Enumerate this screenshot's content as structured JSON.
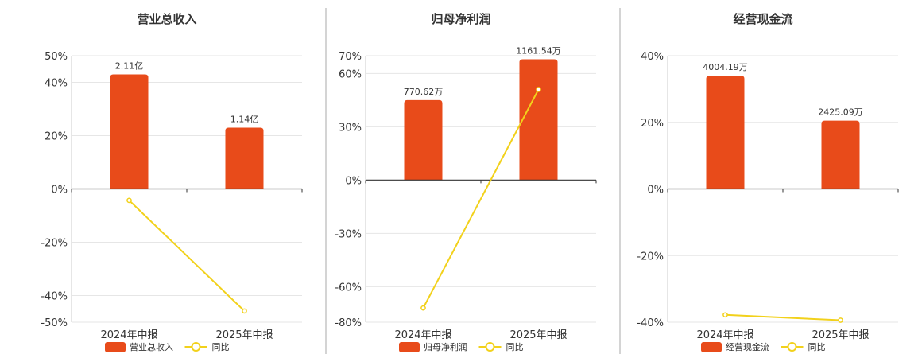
{
  "chart_data": [
    {
      "type": "bar",
      "title": "营业总收入",
      "categories": [
        "2024年中报",
        "2025年中报"
      ],
      "bar_series": {
        "name": "营业总收入",
        "values_pct": [
          43,
          23
        ],
        "labels": [
          "2.11亿",
          "1.14亿"
        ]
      },
      "line_series": {
        "name": "同比",
        "values": [
          -4.3,
          -45.8
        ]
      },
      "ylim": [
        -50,
        50
      ],
      "yticks": [
        50,
        40,
        20,
        0,
        -20,
        -40,
        -50
      ],
      "grid": true,
      "legend": "bottom"
    },
    {
      "type": "bar",
      "title": "归母净利润",
      "categories": [
        "2024年中报",
        "2025年中报"
      ],
      "bar_series": {
        "name": "归母净利润",
        "values_pct": [
          45,
          68
        ],
        "labels": [
          "770.62万",
          "1161.54万"
        ]
      },
      "line_series": {
        "name": "同比",
        "values": [
          -72,
          51
        ]
      },
      "ylim": [
        -80,
        70
      ],
      "yticks": [
        70,
        60,
        30,
        0,
        -30,
        -60,
        -80
      ],
      "grid": true,
      "legend": "bottom"
    },
    {
      "type": "bar",
      "title": "经营现金流",
      "categories": [
        "2024年中报",
        "2025年中报"
      ],
      "bar_series": {
        "name": "经营现金流",
        "values_pct": [
          34,
          20.5
        ],
        "labels": [
          "4004.19万",
          "2425.09万"
        ]
      },
      "line_series": {
        "name": "同比",
        "values": [
          -37.8,
          -39.4
        ]
      },
      "ylim": [
        -40,
        40
      ],
      "yticks": [
        40,
        20,
        0,
        -20,
        -40
      ],
      "grid": true,
      "legend": "bottom"
    }
  ],
  "colors": {
    "bar": "#E84B1A",
    "line": "#F2D11B",
    "grid": "#e6e6e6",
    "axis": "#333333",
    "divider": "#aaaaaa"
  }
}
